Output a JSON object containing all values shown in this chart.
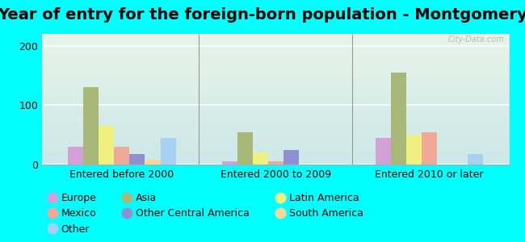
{
  "title": "Year of entry for the foreign-born population - Montgomery",
  "groups": [
    "Entered before 2000",
    "Entered 2000 to 2009",
    "Entered 2010 or later"
  ],
  "series": [
    {
      "label": "Europe",
      "color": "#d4a0d8",
      "values": [
        30,
        5,
        45
      ]
    },
    {
      "label": "Asia",
      "color": "#a8b878",
      "values": [
        130,
        55,
        155
      ]
    },
    {
      "label": "Latin America",
      "color": "#f0f080",
      "values": [
        65,
        20,
        50
      ]
    },
    {
      "label": "Mexico",
      "color": "#f0a898",
      "values": [
        30,
        5,
        55
      ]
    },
    {
      "label": "Other Central America",
      "color": "#9090d0",
      "values": [
        18,
        25,
        0
      ]
    },
    {
      "label": "South America",
      "color": "#f8d898",
      "values": [
        8,
        0,
        0
      ]
    },
    {
      "label": "Other",
      "color": "#a8d0f0",
      "values": [
        45,
        0,
        18
      ]
    }
  ],
  "legend_order": [
    0,
    3,
    6,
    1,
    4,
    2,
    5
  ],
  "legend_ncols": 3,
  "ylim": [
    0,
    220
  ],
  "yticks": [
    0,
    100,
    200
  ],
  "bar_width": 0.1,
  "background_color": "#00ffff",
  "plot_bg_top": "#e8f4e8",
  "plot_bg_bottom": "#cce8e8",
  "title_fontsize": 14,
  "tick_fontsize": 9,
  "legend_fontsize": 9,
  "watermark": "City-Data.com"
}
